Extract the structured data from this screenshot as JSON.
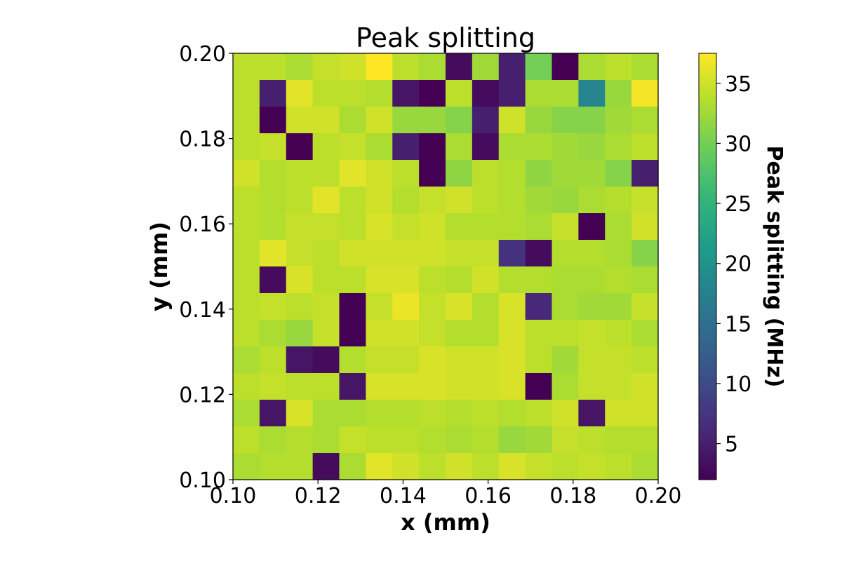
{
  "chart_data": {
    "type": "heatmap",
    "title": "Peak splitting",
    "xlabel": "x (mm)",
    "ylabel": "y (mm)",
    "colorbar_label": "Peak splitting (MHz)",
    "colormap": "viridis",
    "xlim": [
      0.1,
      0.2
    ],
    "ylim": [
      0.1,
      0.2
    ],
    "x_ticks": [
      "0.10",
      "0.12",
      "0.14",
      "0.16",
      "0.18",
      "0.20"
    ],
    "y_ticks": [
      "0.10",
      "0.12",
      "0.14",
      "0.16",
      "0.18",
      "0.20"
    ],
    "colorbar_range": [
      2,
      37.5
    ],
    "colorbar_ticks": [
      "5",
      "10",
      "15",
      "20",
      "25",
      "30",
      "35"
    ],
    "grid": false,
    "rows_top_to_bottom": [
      [
        34,
        34,
        33,
        34.5,
        35,
        37.5,
        34,
        33,
        3,
        32.5,
        5,
        30,
        2,
        33,
        34,
        33
      ],
      [
        34,
        5,
        36,
        34,
        34,
        33.5,
        4,
        2,
        34,
        3,
        5,
        33,
        33,
        18,
        32,
        37
      ],
      [
        34,
        2,
        35,
        35,
        33,
        35,
        32,
        32,
        31,
        5,
        35,
        32,
        31,
        31,
        32.5,
        33
      ],
      [
        34,
        34.5,
        2,
        34,
        34.5,
        33,
        5,
        2,
        33,
        3,
        33,
        33,
        32.5,
        32,
        33,
        34
      ],
      [
        35,
        33.5,
        34,
        34,
        36,
        35,
        34,
        2,
        31.5,
        34,
        33.5,
        31.5,
        32.5,
        32.5,
        31,
        5
      ],
      [
        34,
        33.5,
        34,
        36,
        34,
        35,
        33.5,
        34.5,
        35,
        34,
        33.5,
        32.5,
        32,
        33,
        33.5,
        34.5
      ],
      [
        34,
        33.5,
        34.5,
        34.5,
        34,
        35.5,
        34.5,
        35,
        33.5,
        33.5,
        33.5,
        33,
        34.5,
        2,
        33,
        35
      ],
      [
        34,
        36,
        34.5,
        34,
        35,
        35,
        35,
        35,
        34.5,
        34.5,
        7,
        3,
        33.5,
        33.5,
        33,
        31
      ],
      [
        34,
        3,
        35.5,
        34,
        34,
        35.5,
        35.5,
        34,
        33.5,
        35,
        33.5,
        33.5,
        33,
        33,
        33.5,
        33
      ],
      [
        34,
        34.5,
        34,
        34.5,
        2,
        34.5,
        36.5,
        34.5,
        35.5,
        33.5,
        35.5,
        6,
        33,
        32.5,
        32.5,
        34.5
      ],
      [
        34,
        33,
        32,
        34.5,
        2,
        35,
        35,
        34.5,
        33.5,
        33.5,
        35.5,
        34,
        34,
        34.5,
        34,
        33
      ],
      [
        33,
        34,
        4,
        3,
        33.5,
        34.5,
        34.5,
        35.5,
        35,
        35,
        35.5,
        34,
        32.5,
        34.5,
        34.5,
        34
      ],
      [
        34,
        34.5,
        34,
        34,
        4,
        35.5,
        35.5,
        35.5,
        35,
        35,
        35.5,
        2,
        33,
        34.5,
        34.5,
        35
      ],
      [
        33,
        4,
        35.5,
        33,
        33,
        33.5,
        33.5,
        34,
        33.5,
        34,
        33.5,
        34,
        35,
        4,
        35,
        35
      ],
      [
        34,
        33,
        33.5,
        33,
        34.5,
        34,
        34,
        33.5,
        33,
        33.5,
        32,
        32.5,
        34.5,
        34,
        33.5,
        33.5
      ],
      [
        33,
        33.5,
        33.5,
        3,
        33,
        36,
        35,
        34,
        35,
        34,
        35.5,
        34.5,
        34,
        34.5,
        34,
        33
      ]
    ]
  }
}
